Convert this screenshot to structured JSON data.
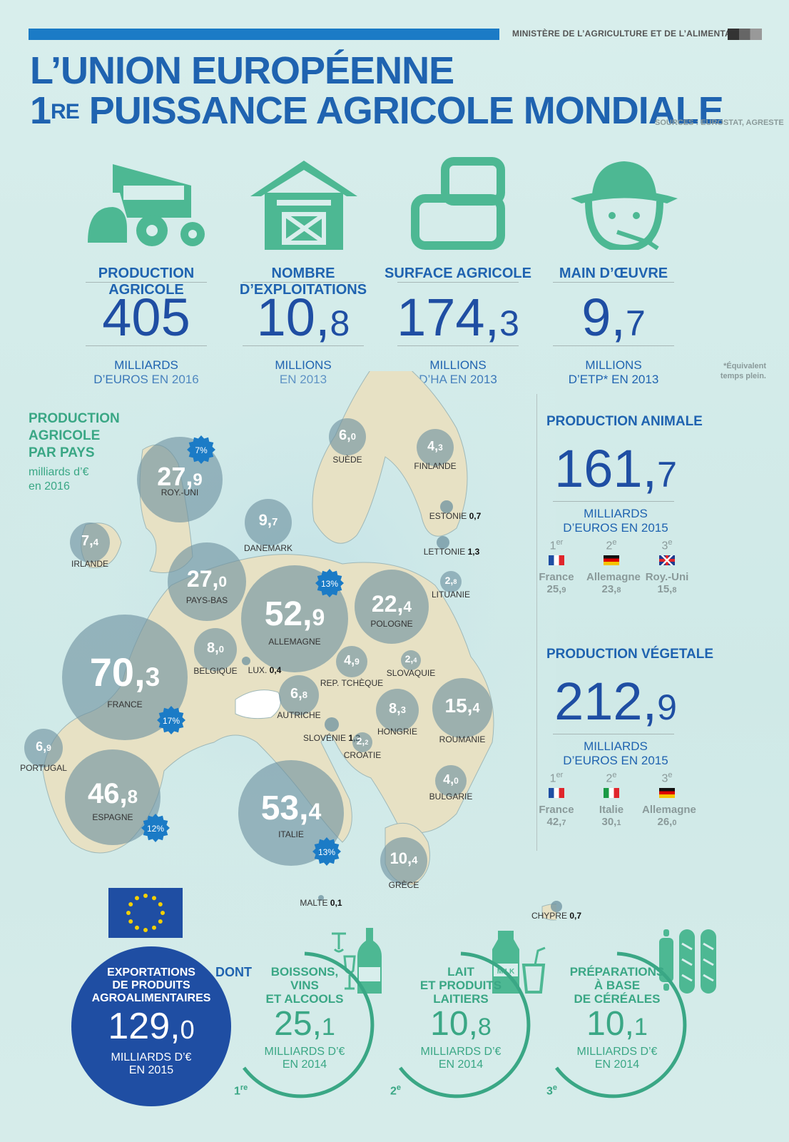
{
  "header": {
    "ministry": "MINISTÈRE DE L’AGRICULTURE ET DE L’ALIMENTATION",
    "title_line1": "L’UNION EUROPÉENNE",
    "title_line2_num": "1",
    "title_line2_sup": "RE",
    "title_line2_rest": " PUISSANCE AGRICOLE MONDIALE",
    "sources": "SOURCES : EUROSTAT, AGRESTE"
  },
  "stats": [
    {
      "label": "PRODUCTION AGRICOLE",
      "int": "405",
      "dec": "",
      "unit1": "MILLIARDS",
      "unit2": "D’EUROS EN 2016",
      "icon": "tractor-icon"
    },
    {
      "label": "NOMBRE D’EXPLOITATIONS",
      "int": "10,",
      "dec": "8",
      "unit1": "MILLIONS",
      "unit2": "EN 2013",
      "icon": "barn-icon"
    },
    {
      "label": "SURFACE AGRICOLE",
      "int": "174,",
      "dec": "3",
      "unit1": "MILLIONS",
      "unit2": "D’HA EN 2013",
      "icon": "field-icon"
    },
    {
      "label": "MAIN D’ŒUVRE",
      "int": "9,",
      "dec": "7",
      "unit1": "MILLIONS",
      "unit2": "D’ETP* EN 2013",
      "icon": "farmer-icon"
    }
  ],
  "note": "*Équivalent temps plein.",
  "map": {
    "title": "PRODUCTION\nAGRICOLE\nPAR PAYS",
    "subtitle": "milliards d’€\nen 2016",
    "countries": [
      {
        "name": "ROY.-UNI",
        "int": "27,",
        "dec": "9"
      },
      {
        "name": "IRLANDE",
        "int": "7,",
        "dec": "4"
      },
      {
        "name": "DANEMARK",
        "int": "9,",
        "dec": "7"
      },
      {
        "name": "SUÈDE",
        "int": "6,",
        "dec": "0"
      },
      {
        "name": "FINLANDE",
        "int": "4,",
        "dec": "3"
      },
      {
        "name": "ESTONIE",
        "int": "0,7",
        "dec": ""
      },
      {
        "name": "LETTONIE",
        "int": "1,3",
        "dec": ""
      },
      {
        "name": "LITUANIE",
        "int": "2,",
        "dec": "8"
      },
      {
        "name": "PAYS-BAS",
        "int": "27,",
        "dec": "0"
      },
      {
        "name": "ALLEMAGNE",
        "int": "52,",
        "dec": "9"
      },
      {
        "name": "POLOGNE",
        "int": "22,",
        "dec": "4"
      },
      {
        "name": "BELGIQUE",
        "int": "8,",
        "dec": "0"
      },
      {
        "name": "LUX.",
        "int": "0,4",
        "dec": ""
      },
      {
        "name": "FRANCE",
        "int": "70,",
        "dec": "3"
      },
      {
        "name": "REP. TCHÈQUE",
        "int": "4,",
        "dec": "9"
      },
      {
        "name": "SLOVAQUIE",
        "int": "2,",
        "dec": "4"
      },
      {
        "name": "AUTRICHE",
        "int": "6,",
        "dec": "8"
      },
      {
        "name": "HONGRIE",
        "int": "8,",
        "dec": "3"
      },
      {
        "name": "ROUMANIE",
        "int": "15,",
        "dec": "4"
      },
      {
        "name": "SLOVÉNIE",
        "int": "1,2",
        "dec": ""
      },
      {
        "name": "CROATIE",
        "int": "2,",
        "dec": "2"
      },
      {
        "name": "PORTUGAL",
        "int": "6,",
        "dec": "9"
      },
      {
        "name": "ESPAGNE",
        "int": "46,",
        "dec": "8"
      },
      {
        "name": "ITALIE",
        "int": "53,",
        "dec": "4"
      },
      {
        "name": "BULGARIE",
        "int": "4,",
        "dec": "0"
      },
      {
        "name": "GRÈCE",
        "int": "10,",
        "dec": "4"
      },
      {
        "name": "MALTE",
        "int": "0,1",
        "dec": ""
      },
      {
        "name": "CHYPRE",
        "int": "0,7",
        "dec": ""
      }
    ],
    "badges": [
      "7%",
      "13%",
      "17%",
      "12%",
      "13%"
    ]
  },
  "side": {
    "animal": {
      "title": "PRODUCTION ANIMALE",
      "int": "161,",
      "dec": "7",
      "unit1": "MILLIARDS",
      "unit2": "D’EUROS EN 2015",
      "ranks": [
        {
          "ord": "1",
          "sup": "er",
          "country": "France",
          "int": "25,",
          "dec": "9",
          "flag": "fr"
        },
        {
          "ord": "2",
          "sup": "e",
          "country": "Allemagne",
          "int": "23,",
          "dec": "8",
          "flag": "de"
        },
        {
          "ord": "3",
          "sup": "e",
          "country": "Roy.-Uni",
          "int": "15,",
          "dec": "8",
          "flag": "uk"
        }
      ]
    },
    "vegetal": {
      "title": "PRODUCTION VÉGETALE",
      "int": "212,",
      "dec": "9",
      "unit1": "MILLIARDS",
      "unit2": "D’EUROS EN 2015",
      "ranks": [
        {
          "ord": "1",
          "sup": "er",
          "country": "France",
          "int": "42,",
          "dec": "7",
          "flag": "fr"
        },
        {
          "ord": "2",
          "sup": "e",
          "country": "Italie",
          "int": "30,",
          "dec": "1",
          "flag": "it"
        },
        {
          "ord": "3",
          "sup": "e",
          "country": "Allemagne",
          "int": "26,",
          "dec": "0",
          "flag": "de"
        }
      ]
    }
  },
  "exports": {
    "label": "EXPORTATIONS\nDE PRODUITS\nAGROALIMENTAIRES",
    "int": "129,",
    "dec": "0",
    "unit1": "MILLIARDS D’€",
    "unit2": "EN 2015",
    "dont": "DONT",
    "cats": [
      {
        "label": "BOISSONS,\nVINS\nET ALCOOLS",
        "int": "25,",
        "dec": "1",
        "unit1": "MILLIARDS D’€",
        "unit2": "EN 2014",
        "rank": "1",
        "sup": "re"
      },
      {
        "label": "LAIT\nET PRODUITS\nLAITIERS",
        "int": "10,",
        "dec": "8",
        "unit1": "MILLIARDS D’€",
        "unit2": "EN 2014",
        "rank": "2",
        "sup": "e",
        "milk_label": "MILK"
      },
      {
        "label": "PRÉPARATIONS\nÀ BASE\nDE CÉRÉALES",
        "int": "10,",
        "dec": "1",
        "unit1": "MILLIARDS D’€",
        "unit2": "EN 2014",
        "rank": "3",
        "sup": "e"
      }
    ]
  },
  "colors": {
    "blue": "#1f63b0",
    "darkblue": "#1f4ea3",
    "green": "#3aa785",
    "bubble": "#7b99a8",
    "land": "#e7e1c4",
    "badge": "#1b7bc6"
  }
}
